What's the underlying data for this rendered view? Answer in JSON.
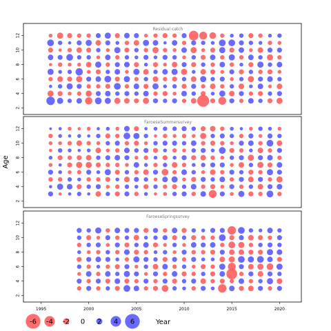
{
  "chart_data": {
    "type": "bubble",
    "xlabel": "Year",
    "ylabel": "Age",
    "xlim": [
      1993.3,
      2022.0
    ],
    "x_ticks": [
      1995,
      2000,
      2005,
      2010,
      2015,
      2020
    ],
    "ylim": [
      1.5,
      13.3
    ],
    "y_ticks": [
      2,
      4,
      6,
      8,
      10,
      12
    ],
    "ages": [
      3,
      4,
      5,
      6,
      7,
      8,
      9,
      10,
      11,
      12
    ],
    "colors": {
      "positive": "#5555ff",
      "negative": "#ff5a5a"
    },
    "panels": [
      {
        "title": "Residual catch",
        "year_start": 1996,
        "rows": [
          [
            1.2,
            -0.8,
            0.3,
            -0.5,
            0.8,
            -0.3,
            0.7,
            -0.6,
            0.9,
            -0.4
          ],
          [
            0.8,
            -0.6,
            0.5,
            -0.7,
            0.4,
            -0.5,
            0.6,
            -0.3,
            0.5,
            -0.8
          ],
          [
            0.5,
            -0.4,
            0.8,
            -0.6,
            0.5,
            -0.4,
            0.9,
            -0.5,
            0.3,
            -0.6
          ],
          [
            0.7,
            -0.5,
            0.6,
            -0.8,
            1.0,
            -0.4,
            0.5,
            -0.7,
            0.6,
            -0.5
          ],
          [
            -1.0,
            -0.8,
            -0.5,
            0.6,
            -0.4,
            -0.7,
            0.5,
            -0.6,
            0.8,
            -0.5
          ],
          [
            0.9,
            0.6,
            -0.5,
            0.7,
            -0.6,
            0.8,
            -0.4,
            0.5,
            -0.7,
            0.6
          ],
          [
            0.8,
            0.7,
            -0.6,
            0.9,
            0.5,
            -0.5,
            0.7,
            -0.4,
            0.6,
            0.8
          ],
          [
            -0.8,
            0.5,
            0.9,
            -0.6,
            0.7,
            0.6,
            -0.5,
            0.8,
            0.4,
            -0.6
          ],
          [
            -0.7,
            0.6,
            -0.5,
            0.8,
            -0.4,
            0.7,
            0.5,
            -0.6,
            -0.5,
            0.7
          ],
          [
            -0.6,
            0.5,
            0.7,
            -0.5,
            0.8,
            -0.6,
            0.4,
            0.5,
            -0.7,
            0.6
          ],
          [
            -0.8,
            0.7,
            -0.6,
            0.5,
            -0.7,
            0.4,
            0.6,
            -0.5,
            0.8,
            -0.4
          ],
          [
            0.6,
            -0.5,
            0.8,
            -0.7,
            0.5,
            -0.6,
            0.4,
            -0.8,
            0.7,
            -0.5
          ],
          [
            0.5,
            -0.6,
            0.4,
            -0.5,
            0.7,
            -0.4,
            0.6,
            -0.5,
            0.3,
            -0.6
          ],
          [
            0.6,
            -0.4,
            0.5,
            -0.6,
            0.8,
            -0.7,
            0.5,
            -0.4,
            0.7,
            -0.5
          ],
          [
            -0.5,
            0.7,
            -0.6,
            0.5,
            -0.8,
            0.6,
            -0.4,
            0.7,
            -0.5,
            0.6
          ],
          [
            -0.7,
            0.5,
            0.6,
            -0.7,
            0.4,
            -0.6,
            0.5,
            -0.8,
            0.6,
            -1.4
          ],
          [
            -1.8,
            -0.6,
            -0.5,
            0.8,
            -0.7,
            0.5,
            -0.6,
            -0.4,
            0.5,
            -1.1
          ],
          [
            -0.6,
            0.4,
            -0.7,
            0.5,
            -0.6,
            -0.5,
            0.7,
            -0.6,
            0.4,
            -0.9
          ],
          [
            -1.1,
            0.8,
            -0.5,
            0.6,
            -0.4,
            0.7,
            -0.5,
            0.8,
            0.9,
            -0.5
          ],
          [
            0.6,
            -0.7,
            0.5,
            -0.4,
            0.6,
            -0.5,
            0.8,
            -0.6,
            0.9,
            0.4
          ],
          [
            -0.5,
            0.6,
            -0.7,
            0.5,
            -0.6,
            0.4,
            -0.5,
            0.7,
            0.6,
            0.5
          ],
          [
            0.7,
            -0.5,
            0.4,
            -0.8,
            0.5,
            -0.6,
            0.7,
            -0.4,
            0.5,
            -0.6
          ],
          [
            0.5,
            -0.6,
            0.7,
            0.6,
            -0.5,
            0.8,
            0.5,
            -0.7,
            0.4,
            -0.5
          ],
          [
            -0.6,
            0.5,
            -0.4,
            0.7,
            -0.6,
            0.5,
            -0.8,
            0.6,
            -0.5,
            0.4
          ],
          [
            -0.8,
            0.6,
            -0.7,
            0.5,
            -0.4,
            0.7,
            -0.5,
            0.6,
            -0.4,
            0.5
          ]
        ]
      },
      {
        "title": "FaroeseSummersurvey",
        "year_start": 1996,
        "rows": [
          [
            0.6,
            0.3,
            -0.5,
            0.6,
            -0.4,
            0.4,
            -0.3,
            -0.4,
            -0.5,
            0.2
          ],
          [
            -0.3,
            0.8,
            -0.5,
            0.4,
            0.3,
            -0.6,
            0.5,
            -0.4,
            0.4,
            0.3
          ],
          [
            0.3,
            0.7,
            0.5,
            -0.4,
            -0.6,
            -0.5,
            0.4,
            -0.5,
            0.3,
            -0.4
          ],
          [
            0.5,
            -0.6,
            0.4,
            -0.5,
            -0.8,
            -0.6,
            0.3,
            -0.7,
            0.4,
            -0.3
          ],
          [
            0.3,
            0.5,
            -0.5,
            0.6,
            -0.8,
            -0.7,
            0.4,
            -0.5,
            0.3,
            -0.4
          ],
          [
            -0.7,
            0.6,
            -0.5,
            0.4,
            -0.6,
            0.5,
            -0.7,
            -0.4,
            0.5,
            0.3
          ],
          [
            0.5,
            -0.4,
            -0.6,
            0.8,
            -0.5,
            0.6,
            -0.4,
            0.5,
            -0.6,
            0.4
          ],
          [
            -0.6,
            -0.5,
            0.4,
            -0.6,
            -0.5,
            0.7,
            -0.5,
            0.6,
            -0.5,
            -0.4
          ],
          [
            0.6,
            0.5,
            -0.7,
            0.5,
            -0.4,
            0.6,
            0.7,
            -0.5,
            0.9,
            0.7
          ],
          [
            -0.5,
            0.4,
            0.6,
            -0.5,
            0.7,
            -0.4,
            0.5,
            -0.6,
            0.8,
            -0.6
          ],
          [
            0.4,
            -0.6,
            0.5,
            -0.7,
            0.4,
            -0.5,
            0.6,
            -0.4,
            0.5,
            0.3
          ],
          [
            -0.3,
            0.5,
            -0.4,
            0.6,
            -0.5,
            0.4,
            -0.6,
            0.5,
            -0.3,
            0.4
          ],
          [
            -0.4,
            -0.5,
            0.7,
            -0.9,
            0.5,
            -0.6,
            0.4,
            0.6,
            -0.5,
            0.5
          ],
          [
            0.5,
            -0.6,
            0.8,
            -0.5,
            -0.7,
            0.4,
            -0.5,
            0.6,
            -0.4,
            0.5
          ],
          [
            0.6,
            0.5,
            -0.4,
            0.7,
            -0.5,
            0.6,
            -0.4,
            0.5,
            -0.5,
            0.6
          ],
          [
            -0.5,
            0.7,
            -0.6,
            0.5,
            0.4,
            -0.6,
            0.5,
            0.7,
            -0.4,
            0.5
          ],
          [
            0.7,
            -0.5,
            0.6,
            -0.4,
            0.5,
            -0.7,
            0.6,
            -0.5,
            -0.8,
            -0.6
          ],
          [
            -1.1,
            -0.6,
            0.5,
            -0.7,
            0.6,
            -0.5,
            0.4,
            -0.6,
            0.5,
            -0.7
          ],
          [
            0.6,
            -0.4,
            0.7,
            -0.5,
            0.6,
            -0.4,
            0.9,
            -0.5,
            0.6,
            -0.5
          ],
          [
            -0.4,
            0.6,
            -0.5,
            0.6,
            -0.4,
            0.5,
            -0.6,
            -0.4,
            0.5,
            0.4
          ],
          [
            0.8,
            -0.5,
            0.6,
            0.5,
            -0.7,
            0.6,
            -0.5,
            0.6,
            -0.5,
            0.3
          ],
          [
            -0.6,
            0.5,
            -0.7,
            -0.6,
            0.5,
            -0.8,
            0.4,
            0.7,
            0.6,
            -0.4
          ],
          [
            -0.5,
            -0.7,
            0.6,
            -0.5,
            -0.8,
            0.6,
            -0.7,
            -0.5,
            -0.4,
            0.5
          ],
          [
            0.9,
            0.6,
            -0.5,
            0.8,
            -0.6,
            0.7,
            -0.5,
            0.9,
            0.6,
            0.4
          ],
          [
            -0.5,
            0.7,
            -0.8,
            0.6,
            0.7,
            -0.5,
            0.6,
            -0.7,
            0.5,
            -0.4
          ]
        ]
      },
      {
        "title": "FaroeseSpringsurvey",
        "year_start": 1999,
        "rows": [
          [
            -0.5,
            0.6,
            -0.4,
            0.5,
            -0.6,
            0.4,
            -0.5,
            0.5,
            0.6
          ],
          [
            0.6,
            -0.5,
            0.7,
            -0.5,
            0.6,
            -0.4,
            0.5,
            -0.6,
            0.5
          ],
          [
            -0.5,
            0.6,
            -0.5,
            0.4,
            0.7,
            -0.5,
            0.6,
            -0.4,
            0.8
          ],
          [
            0.5,
            -0.6,
            0.7,
            -0.5,
            0.6,
            0.5,
            -0.4,
            0.6,
            -0.5
          ],
          [
            -0.6,
            0.7,
            0.5,
            -0.6,
            0.4,
            -0.5,
            0.6,
            -0.5,
            0.7
          ],
          [
            0.9,
            -0.6,
            0.8,
            0.6,
            -0.5,
            0.7,
            -0.6,
            0.5,
            0.6
          ],
          [
            0.7,
            -0.5,
            0.6,
            -0.4,
            0.8,
            -0.6,
            0.5,
            -0.7,
            0.6
          ],
          [
            -0.5,
            0.6,
            -0.4,
            0.5,
            0.6,
            -0.5,
            0.7,
            0.4,
            -0.6
          ],
          [
            -0.6,
            -0.5,
            0.6,
            -0.7,
            0.5,
            0.4,
            -0.6,
            0.5,
            0.6
          ],
          [
            -0.9,
            0.6,
            -0.5,
            0.7,
            -0.6,
            0.5,
            -0.4,
            0.6,
            -0.5
          ],
          [
            0.5,
            -0.6,
            0.7,
            -0.5,
            0.6,
            -0.4,
            0.5,
            -0.6,
            0.7
          ],
          [
            0.4,
            0.5,
            -0.6,
            0.5,
            -0.5,
            0.6,
            -0.4,
            0.5,
            -0.6
          ],
          [
            -0.5,
            0.6,
            -0.5,
            -0.4,
            0.6,
            -0.5,
            0.7,
            -0.6,
            0.5
          ],
          [
            0.6,
            -0.7,
            0.5,
            -0.6,
            0.4,
            -0.5,
            0.6,
            -0.5,
            0.4
          ],
          [
            0.4,
            -0.5,
            -0.6,
            -0.5,
            0.4,
            -0.6,
            0.7,
            -0.5,
            0.6
          ],
          [
            -1.2,
            -0.6,
            0.7,
            0.8,
            -0.7,
            0.6,
            -0.5,
            0.9,
            0.6
          ],
          [
            0.7,
            -0.5,
            -1.6,
            -1.1,
            -0.8,
            -0.7,
            -0.9,
            -0.6,
            -1.2
          ],
          [
            -0.6,
            0.7,
            -0.5,
            0.6,
            0.9,
            -0.7,
            -0.8,
            0.6,
            0.9
          ],
          [
            -0.7,
            -0.5,
            0.6,
            -0.7,
            0.8,
            -0.6,
            -0.5,
            -0.7,
            0.5
          ],
          [
            0.6,
            0.5,
            -0.7,
            -0.8,
            0.9,
            -0.6,
            0.5,
            -0.6,
            0.4
          ],
          [
            -0.5,
            0.8,
            0.6,
            -0.9,
            0.7,
            0.8,
            0.6,
            -0.5,
            0.7
          ],
          [
            0.6,
            -0.7,
            0.5,
            0.8,
            -0.6,
            0.7,
            0.5,
            0.6,
            0.5
          ]
        ]
      }
    ],
    "legend": {
      "values": [
        -6,
        -4,
        -2,
        0,
        2,
        4,
        6
      ],
      "labels": [
        "-6",
        "-4",
        "-2",
        "0",
        "2",
        "4",
        "6"
      ]
    }
  }
}
